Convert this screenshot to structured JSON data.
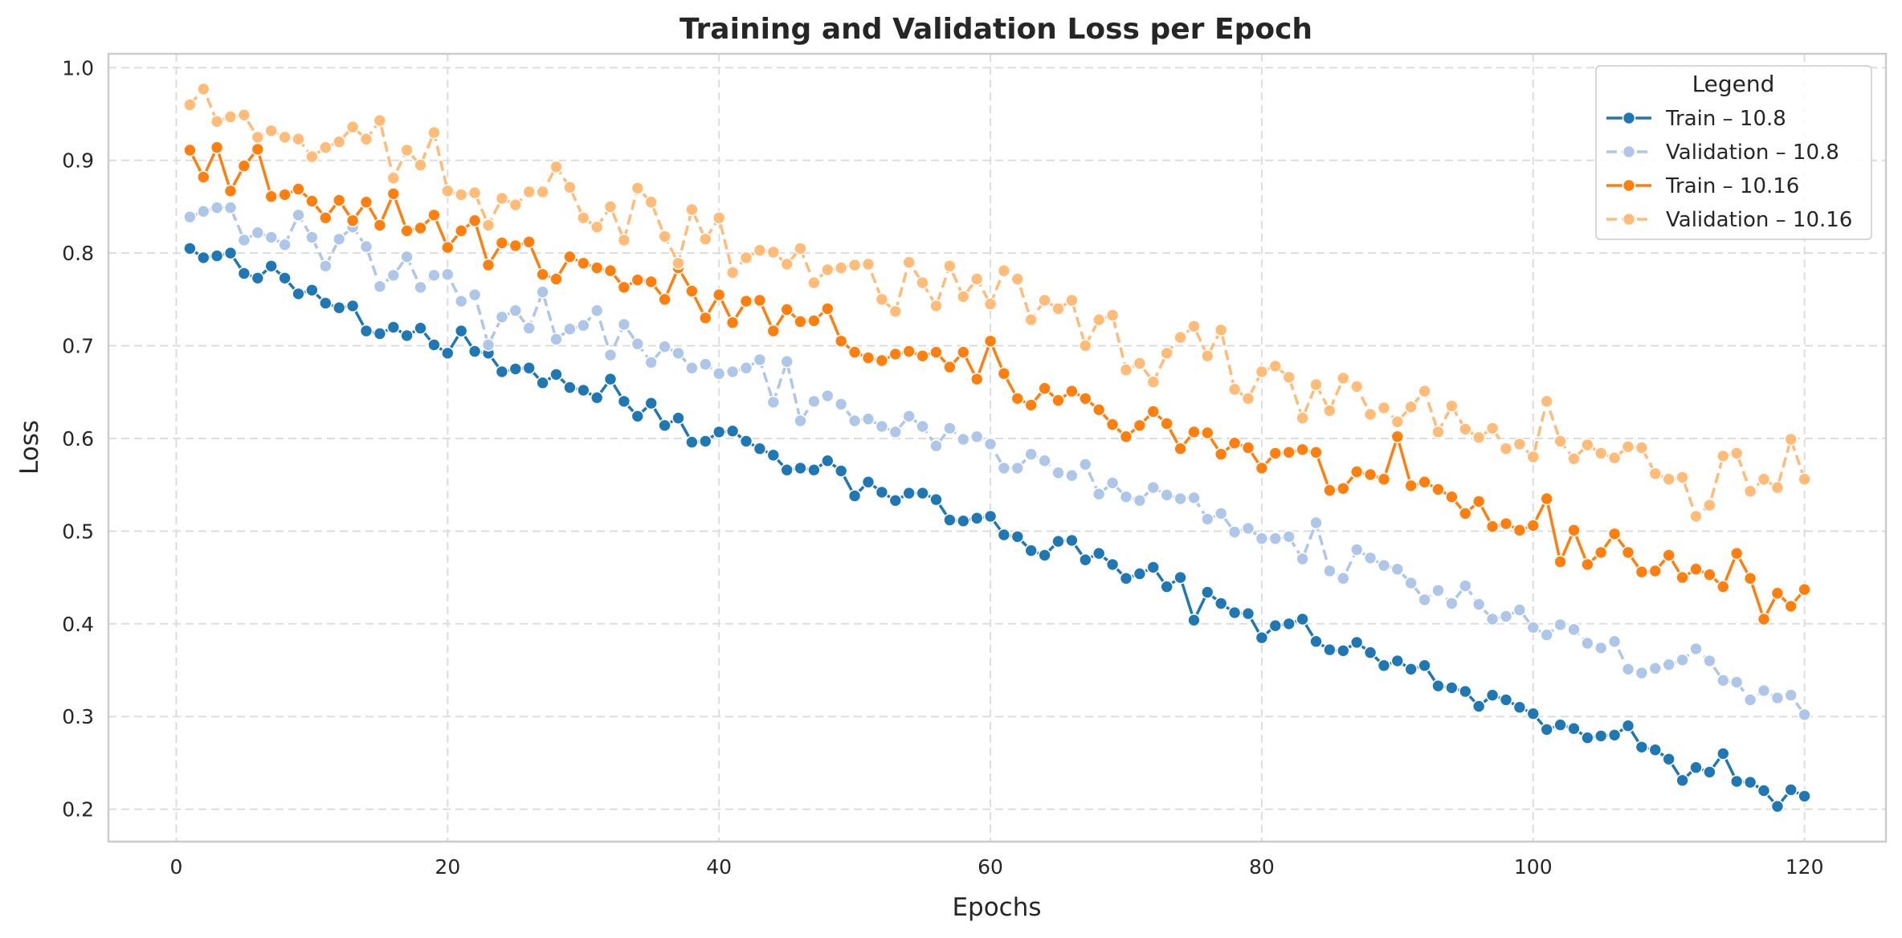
{
  "chart_data": {
    "type": "line",
    "title": "Training and Validation Loss per Epoch",
    "xlabel": "Epochs",
    "ylabel": "Loss",
    "xlim": [
      -5,
      126
    ],
    "ylim": [
      0.165,
      1.015
    ],
    "xticks": [
      0,
      20,
      40,
      60,
      80,
      100,
      120
    ],
    "yticks": [
      0.2,
      0.3,
      0.4,
      0.5,
      0.6,
      0.7,
      0.8,
      0.9,
      1.0
    ],
    "ytick_labels": [
      "0.2",
      "0.3",
      "0.4",
      "0.5",
      "0.6",
      "0.7",
      "0.8",
      "0.9",
      "1.0"
    ],
    "grid": true,
    "legend": {
      "title": "Legend",
      "placement": "top-right"
    },
    "x_start": 1,
    "series": [
      {
        "name": "Train – 10.8",
        "color": "#1f77b4",
        "style": "solid",
        "values": [
          0.805,
          0.795,
          0.797,
          0.8,
          0.778,
          0.773,
          0.786,
          0.773,
          0.756,
          0.76,
          0.746,
          0.741,
          0.743,
          0.716,
          0.713,
          0.72,
          0.711,
          0.719,
          0.701,
          0.692,
          0.716,
          0.694,
          0.692,
          0.672,
          0.675,
          0.676,
          0.66,
          0.669,
          0.655,
          0.652,
          0.644,
          0.664,
          0.64,
          0.624,
          0.638,
          0.614,
          0.622,
          0.596,
          0.597,
          0.607,
          0.608,
          0.597,
          0.589,
          0.582,
          0.566,
          0.568,
          0.566,
          0.576,
          0.565,
          0.538,
          0.553,
          0.542,
          0.533,
          0.541,
          0.541,
          0.534,
          0.512,
          0.511,
          0.514,
          0.516,
          0.496,
          0.494,
          0.479,
          0.474,
          0.489,
          0.49,
          0.469,
          0.476,
          0.464,
          0.449,
          0.454,
          0.461,
          0.44,
          0.45,
          0.404,
          0.434,
          0.422,
          0.412,
          0.411,
          0.385,
          0.398,
          0.4,
          0.405,
          0.381,
          0.372,
          0.371,
          0.38,
          0.369,
          0.355,
          0.36,
          0.351,
          0.355,
          0.333,
          0.331,
          0.327,
          0.311,
          0.323,
          0.318,
          0.31,
          0.303,
          0.286,
          0.291,
          0.287,
          0.277,
          0.279,
          0.28,
          0.29,
          0.267,
          0.264,
          0.254,
          0.231,
          0.245,
          0.24,
          0.26,
          0.23,
          0.229,
          0.22,
          0.203,
          0.221,
          0.214
        ]
      },
      {
        "name": "Validation – 10.8",
        "color": "#aec7e8",
        "style": "dashed",
        "values": [
          0.839,
          0.845,
          0.849,
          0.849,
          0.814,
          0.822,
          0.817,
          0.809,
          0.841,
          0.817,
          0.786,
          0.815,
          0.828,
          0.807,
          0.764,
          0.776,
          0.796,
          0.763,
          0.776,
          0.777,
          0.748,
          0.755,
          0.701,
          0.731,
          0.738,
          0.719,
          0.758,
          0.707,
          0.718,
          0.722,
          0.738,
          0.69,
          0.723,
          0.702,
          0.682,
          0.699,
          0.692,
          0.676,
          0.68,
          0.67,
          0.672,
          0.676,
          0.685,
          0.639,
          0.683,
          0.619,
          0.64,
          0.646,
          0.637,
          0.619,
          0.621,
          0.613,
          0.607,
          0.624,
          0.613,
          0.592,
          0.611,
          0.599,
          0.602,
          0.594,
          0.568,
          0.568,
          0.583,
          0.576,
          0.563,
          0.56,
          0.572,
          0.54,
          0.552,
          0.537,
          0.533,
          0.547,
          0.539,
          0.535,
          0.536,
          0.513,
          0.519,
          0.499,
          0.503,
          0.492,
          0.492,
          0.494,
          0.47,
          0.509,
          0.457,
          0.449,
          0.48,
          0.471,
          0.463,
          0.459,
          0.444,
          0.426,
          0.436,
          0.422,
          0.441,
          0.421,
          0.405,
          0.408,
          0.415,
          0.396,
          0.388,
          0.399,
          0.394,
          0.379,
          0.374,
          0.381,
          0.351,
          0.347,
          0.352,
          0.356,
          0.361,
          0.373,
          0.36,
          0.339,
          0.337,
          0.318,
          0.328,
          0.32,
          0.323,
          0.302
        ]
      },
      {
        "name": "Train – 10.16",
        "color": "#ff7f0e",
        "style": "solid",
        "values": [
          0.911,
          0.882,
          0.914,
          0.867,
          0.894,
          0.912,
          0.861,
          0.863,
          0.869,
          0.856,
          0.838,
          0.857,
          0.835,
          0.855,
          0.83,
          0.864,
          0.824,
          0.827,
          0.841,
          0.806,
          0.824,
          0.835,
          0.787,
          0.811,
          0.808,
          0.812,
          0.777,
          0.772,
          0.796,
          0.789,
          0.784,
          0.781,
          0.763,
          0.771,
          0.769,
          0.75,
          0.784,
          0.759,
          0.73,
          0.755,
          0.725,
          0.748,
          0.749,
          0.716,
          0.739,
          0.726,
          0.727,
          0.74,
          0.705,
          0.693,
          0.687,
          0.684,
          0.691,
          0.694,
          0.689,
          0.693,
          0.677,
          0.693,
          0.664,
          0.705,
          0.67,
          0.643,
          0.636,
          0.654,
          0.641,
          0.651,
          0.643,
          0.631,
          0.615,
          0.602,
          0.614,
          0.629,
          0.616,
          0.589,
          0.607,
          0.606,
          0.583,
          0.595,
          0.59,
          0.568,
          0.584,
          0.585,
          0.588,
          0.585,
          0.544,
          0.546,
          0.564,
          0.561,
          0.556,
          0.602,
          0.549,
          0.553,
          0.545,
          0.537,
          0.519,
          0.532,
          0.505,
          0.508,
          0.501,
          0.506,
          0.535,
          0.467,
          0.501,
          0.464,
          0.477,
          0.497,
          0.477,
          0.456,
          0.457,
          0.474,
          0.45,
          0.459,
          0.453,
          0.44,
          0.476,
          0.449,
          0.405,
          0.433,
          0.419,
          0.437
        ]
      },
      {
        "name": "Validation – 10.16",
        "color": "#ffbb78",
        "style": "dashed",
        "values": [
          0.96,
          0.977,
          0.942,
          0.947,
          0.949,
          0.925,
          0.932,
          0.925,
          0.923,
          0.904,
          0.914,
          0.92,
          0.936,
          0.923,
          0.943,
          0.881,
          0.911,
          0.895,
          0.93,
          0.867,
          0.863,
          0.865,
          0.83,
          0.859,
          0.852,
          0.866,
          0.866,
          0.893,
          0.871,
          0.838,
          0.828,
          0.85,
          0.814,
          0.87,
          0.855,
          0.818,
          0.789,
          0.847,
          0.815,
          0.838,
          0.779,
          0.795,
          0.803,
          0.801,
          0.788,
          0.805,
          0.768,
          0.782,
          0.784,
          0.787,
          0.788,
          0.75,
          0.737,
          0.79,
          0.768,
          0.743,
          0.786,
          0.753,
          0.772,
          0.745,
          0.781,
          0.772,
          0.728,
          0.749,
          0.74,
          0.749,
          0.7,
          0.728,
          0.733,
          0.674,
          0.681,
          0.661,
          0.692,
          0.709,
          0.721,
          0.689,
          0.717,
          0.653,
          0.643,
          0.672,
          0.678,
          0.666,
          0.622,
          0.658,
          0.63,
          0.665,
          0.656,
          0.626,
          0.633,
          0.618,
          0.634,
          0.651,
          0.607,
          0.635,
          0.61,
          0.601,
          0.611,
          0.589,
          0.594,
          0.58,
          0.64,
          0.597,
          0.578,
          0.593,
          0.584,
          0.579,
          0.591,
          0.59,
          0.562,
          0.556,
          0.558,
          0.516,
          0.528,
          0.581,
          0.584,
          0.543,
          0.556,
          0.547,
          0.599,
          0.556
        ]
      }
    ]
  }
}
